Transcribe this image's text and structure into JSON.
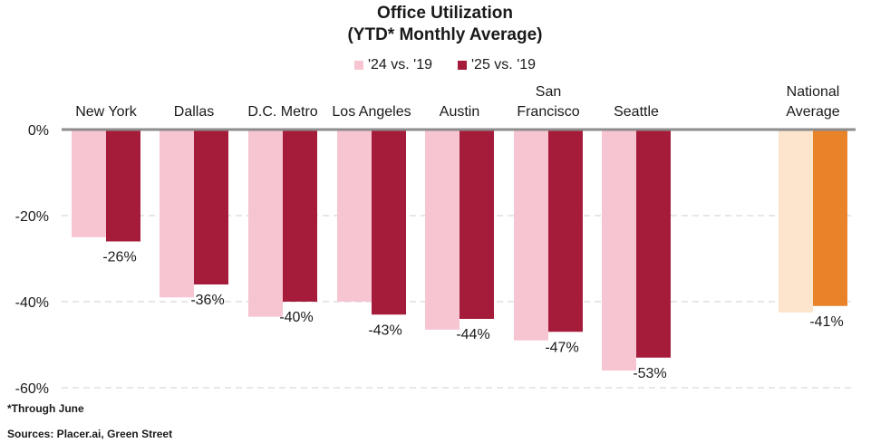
{
  "chart_data": {
    "type": "bar",
    "title": "Office Utilization",
    "subtitle": "(YTD* Monthly Average)",
    "categories": [
      {
        "lines": [
          "New York"
        ]
      },
      {
        "lines": [
          "Dallas"
        ]
      },
      {
        "lines": [
          "D.C. Metro"
        ]
      },
      {
        "lines": [
          "Los Angeles"
        ]
      },
      {
        "lines": [
          "Austin"
        ]
      },
      {
        "lines": [
          "San",
          "Francisco"
        ]
      },
      {
        "lines": [
          "Seattle"
        ]
      },
      {
        "lines": [
          "National",
          "Average"
        ]
      }
    ],
    "series": [
      {
        "name": "'24 vs. '19",
        "values": [
          -25,
          -39,
          -43.5,
          -40,
          -46.5,
          -49,
          -56,
          -42.5
        ]
      },
      {
        "name": "'25 vs. '19",
        "values": [
          -26,
          -36,
          -40,
          -43,
          -44,
          -47,
          -53,
          -41
        ]
      }
    ],
    "data_labels": [
      "-26%",
      "-36%",
      "-40%",
      "-43%",
      "-44%",
      "-47%",
      "-53%",
      "-41%"
    ],
    "yticks": [
      0,
      -20,
      -40,
      -60
    ],
    "ytick_labels": [
      "0%",
      "-20%",
      "-40%",
      "-60%"
    ],
    "ylim": [
      -60,
      0
    ],
    "grid": true,
    "legend_position": "top-center",
    "colors": {
      "city_24": "#f7c5d2",
      "city_25": "#a51c3a",
      "national_24": "#fde4cd",
      "national_25": "#e8832a"
    }
  },
  "footnote": "*Through June",
  "source": "Sources: Placer.ai, Green Street"
}
